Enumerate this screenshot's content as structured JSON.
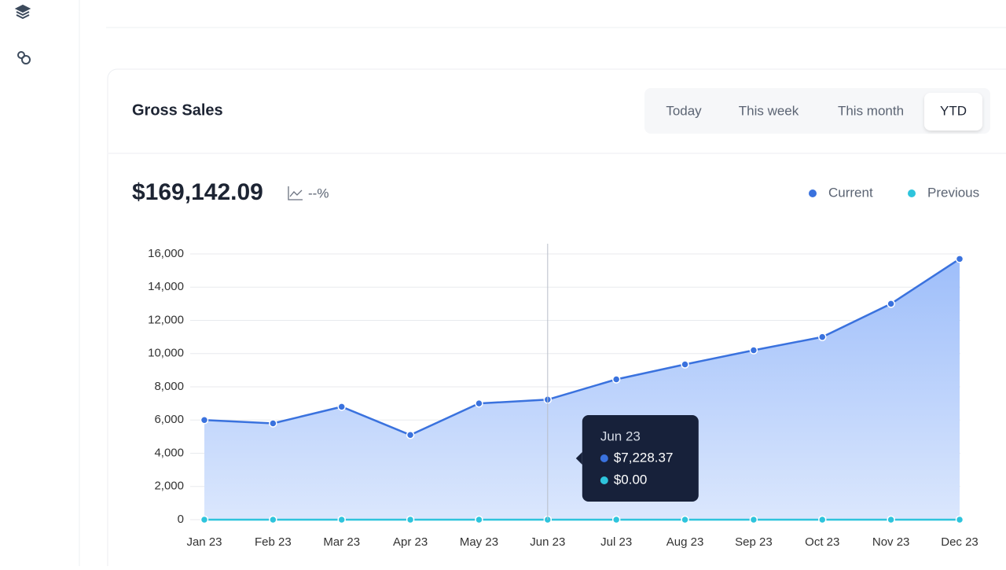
{
  "card": {
    "title": "Gross Sales",
    "tabs": [
      "Today",
      "This week",
      "This month",
      "YTD"
    ],
    "total": "$169,142.09",
    "change": "--%"
  },
  "chart_data": {
    "type": "area",
    "categories": [
      "Jan 23",
      "Feb 23",
      "Mar 23",
      "Apr 23",
      "May 23",
      "Jun 23",
      "Jul 23",
      "Aug 23",
      "Sep 23",
      "Oct 23",
      "Nov 23",
      "Dec 23"
    ],
    "series": [
      {
        "name": "Current",
        "color": "#3a72de",
        "values": [
          6000,
          5800,
          6800,
          5100,
          7000,
          7228.37,
          8450,
          9350,
          10200,
          11000,
          13000,
          15700
        ],
        "value_labels": [
          null,
          null,
          null,
          null,
          null,
          "$7,228.37",
          null,
          null,
          null,
          null,
          null,
          null
        ]
      },
      {
        "name": "Previous",
        "color": "#2ec4dc",
        "values": [
          0,
          0,
          0,
          0,
          0,
          0,
          0,
          0,
          0,
          0,
          0,
          0
        ],
        "value_labels": [
          null,
          null,
          null,
          null,
          null,
          "$0.00",
          null,
          null,
          null,
          null,
          null,
          null
        ]
      }
    ],
    "ylim": [
      0,
      16000
    ],
    "yticks": [
      0,
      {
        "value": 2000,
        "label": "2,000"
      },
      {
        "value": 4000,
        "label": "4,000"
      },
      {
        "value": 6000,
        "label": "6,000"
      },
      {
        "value": 8000,
        "label": "8,000"
      },
      {
        "value": 10000,
        "label": "10,000"
      },
      {
        "value": 12000,
        "label": "12,000"
      },
      {
        "value": 14000,
        "label": "14,000"
      },
      {
        "value": 16000,
        "label": "16,000"
      }
    ],
    "grid": true
  }
}
